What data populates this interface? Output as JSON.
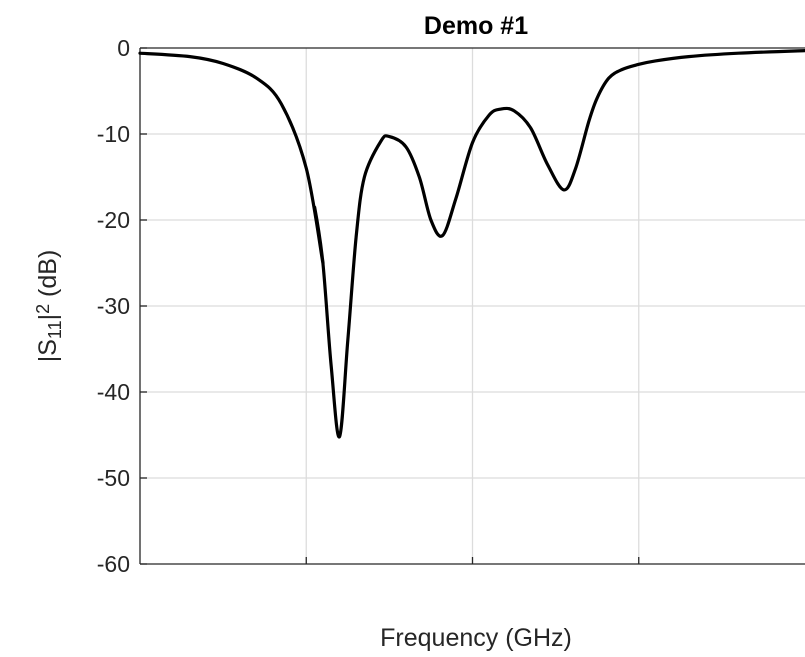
{
  "chart_data": {
    "type": "line",
    "title": "Demo #1",
    "xlabel": "Frequency (GHz)",
    "ylabel": {
      "prefix": "|S",
      "subscript": "11",
      "middle": "|",
      "superscript": "2",
      "suffix": " (dB)"
    },
    "ylim": [
      -60,
      0
    ],
    "yticks": [
      0,
      -10,
      -20,
      -30,
      -40,
      -50,
      -60
    ],
    "ytick_labels": [
      "0",
      "-10",
      "-20",
      "-30",
      "-40",
      "-50",
      "-60"
    ],
    "xlim": [
      0,
      4
    ],
    "xgrid": [
      1,
      2,
      3
    ],
    "xtick_labels": [],
    "grid": true,
    "line_color": "#000000",
    "series": [
      {
        "x": [
          0,
          0.3,
          0.5,
          0.7,
          0.85,
          1.0,
          1.1,
          1.05,
          1.1,
          1.15,
          1.2,
          1.25,
          1.3,
          1.35,
          1.45,
          1.5,
          1.6,
          1.68,
          1.75,
          1.82,
          1.9,
          2.0,
          2.1,
          2.17,
          2.25,
          2.35,
          2.45,
          2.55,
          2.62,
          2.7,
          2.75,
          2.82,
          2.9,
          3.0,
          3.1,
          3.3,
          3.6,
          4.0
        ],
        "y": [
          -0.6,
          -1.0,
          -1.8,
          -3.5,
          -6.5,
          -14,
          -25,
          -18.5,
          -25,
          -37,
          -45.2,
          -34,
          -22,
          -15,
          -10.8,
          -10.3,
          -11.5,
          -15,
          -20,
          -21.8,
          -17.5,
          -11,
          -7.8,
          -7.1,
          -7.3,
          -9.3,
          -13.5,
          -16.5,
          -14,
          -8.5,
          -5.8,
          -3.5,
          -2.5,
          -1.9,
          -1.5,
          -1.0,
          -0.6,
          -0.3
        ]
      }
    ]
  }
}
